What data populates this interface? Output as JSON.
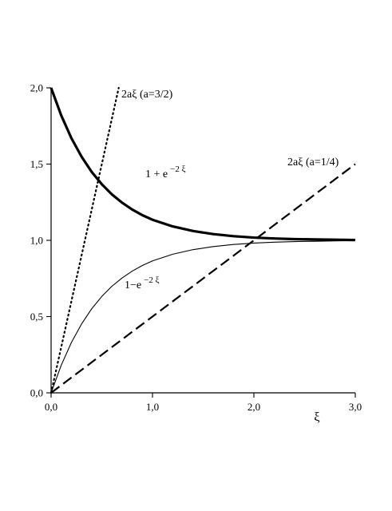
{
  "chart_data": {
    "type": "line",
    "title": "",
    "xlabel": "ξ",
    "ylabel": "",
    "xlim": [
      0,
      3
    ],
    "ylim": [
      0,
      2
    ],
    "grid": false,
    "legend": "none",
    "x_ticks": [
      {
        "value": 0,
        "label": "0,0"
      },
      {
        "value": 1,
        "label": "1,0"
      },
      {
        "value": 2,
        "label": "2,0"
      },
      {
        "value": 3,
        "label": "3,0"
      }
    ],
    "y_ticks": [
      {
        "value": 0,
        "label": "0,0"
      },
      {
        "value": 0.5,
        "label": "0,5"
      },
      {
        "value": 1,
        "label": "1,0"
      },
      {
        "value": 1.5,
        "label": "1,5"
      },
      {
        "value": 2,
        "label": "2,0"
      }
    ],
    "series": [
      {
        "label_main": "1 + e",
        "label_sup": "−2 ξ",
        "style": "solid-thick",
        "color": "#000000",
        "x": [
          0,
          0.1,
          0.2,
          0.3,
          0.4,
          0.5,
          0.6,
          0.7,
          0.8,
          0.9,
          1.0,
          1.2,
          1.4,
          1.6,
          1.8,
          2.0,
          2.2,
          2.4,
          2.6,
          2.8,
          3.0
        ],
        "y": [
          2.0,
          1.819,
          1.67,
          1.549,
          1.449,
          1.368,
          1.301,
          1.247,
          1.202,
          1.165,
          1.135,
          1.091,
          1.061,
          1.041,
          1.027,
          1.018,
          1.012,
          1.008,
          1.006,
          1.004,
          1.002
        ]
      },
      {
        "label_main": "1−e",
        "label_sup": "−2 ξ",
        "style": "solid-thin",
        "color": "#000000",
        "x": [
          0,
          0.1,
          0.2,
          0.3,
          0.4,
          0.5,
          0.6,
          0.7,
          0.8,
          0.9,
          1.0,
          1.2,
          1.4,
          1.6,
          1.8,
          2.0,
          2.2,
          2.4,
          2.6,
          2.8,
          3.0
        ],
        "y": [
          0.0,
          0.181,
          0.33,
          0.451,
          0.551,
          0.632,
          0.699,
          0.753,
          0.798,
          0.835,
          0.865,
          0.909,
          0.939,
          0.959,
          0.973,
          0.982,
          0.988,
          0.992,
          0.994,
          0.996,
          0.998
        ]
      },
      {
        "label_main": "2aξ (a=1/4)",
        "label_sup": "",
        "style": "dashed",
        "color": "#000000",
        "x": [
          0,
          3.0
        ],
        "y": [
          0,
          1.5
        ]
      },
      {
        "label_main": "2aξ (a=3/2)",
        "label_sup": "",
        "style": "dotted",
        "color": "#000000",
        "x": [
          0,
          0.667
        ],
        "y": [
          0,
          2.0
        ]
      }
    ]
  }
}
